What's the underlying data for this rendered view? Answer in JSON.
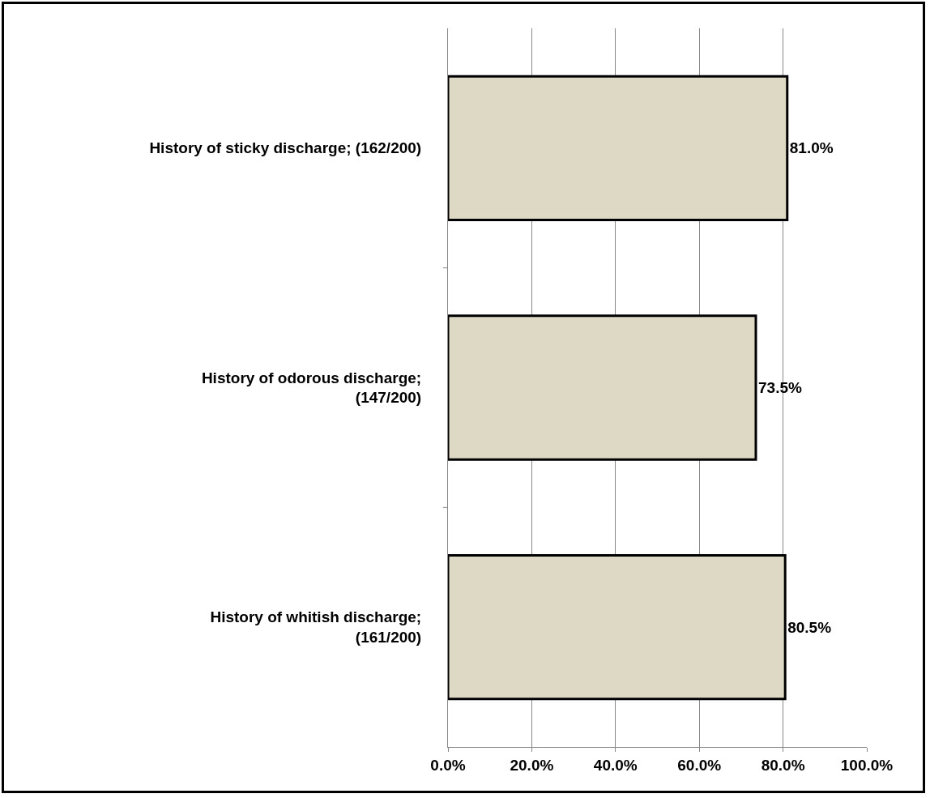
{
  "chart_data": {
    "type": "bar",
    "orientation": "horizontal",
    "categories": [
      "History of sticky discharge; (162/200)",
      "History of odorous discharge;\n(147/200)",
      "History of whitish discharge;\n(161/200)"
    ],
    "values": [
      81.0,
      73.5,
      80.5
    ],
    "value_labels": [
      "81.0%",
      "73.5%",
      "80.5%"
    ],
    "color": "#ddd9c4",
    "xlim": [
      0,
      100
    ],
    "xticks": [
      {
        "value": 0,
        "label": "0.0%"
      },
      {
        "value": 20,
        "label": "20.0%"
      },
      {
        "value": 40,
        "label": "40.0%"
      },
      {
        "value": 60,
        "label": "60.0%"
      },
      {
        "value": 80,
        "label": "80.0%"
      },
      {
        "value": 100,
        "label": "100.0%"
      }
    ],
    "grid": "x",
    "legend": false
  }
}
